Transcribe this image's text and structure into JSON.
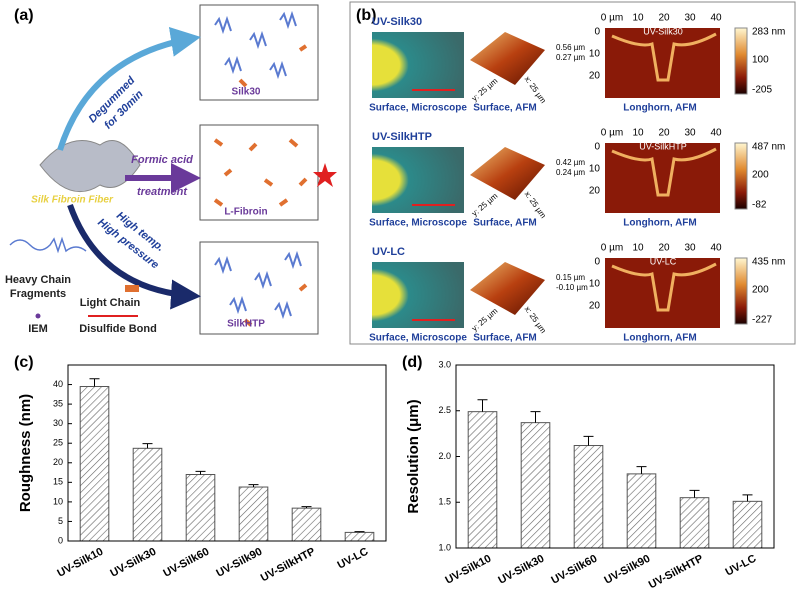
{
  "panel_a": {
    "label": "(a)",
    "fiber": "Silk Fibroin Fiber",
    "arrow_top": [
      "Degummed",
      "for 30min"
    ],
    "arrow_mid": [
      "Formic acid",
      "treatment"
    ],
    "arrow_bottom": [
      "High temp.",
      "High pressure"
    ],
    "box_labels": [
      "Silk30",
      "L-Fibroin",
      "SilkHTP"
    ],
    "legend": [
      "Heavy Chain",
      "Fragments",
      "Light Chain",
      "IEM",
      "Disulfide Bond"
    ]
  },
  "panel_b": {
    "label": "(b)",
    "captions": [
      "Surface, Microscope",
      "Surface, AFM",
      "Longhorn, AFM"
    ],
    "x_ticks": [
      "0 µm",
      "10",
      "20",
      "30",
      "40"
    ],
    "y_ticks": [
      "0",
      "10",
      "20"
    ],
    "afm_axes": [
      "y: 25 µm",
      "x: 25 µm"
    ],
    "rows": [
      {
        "name": "UV-Silk30",
        "afm_range": [
          "0.56 µm",
          "0.27 µm"
        ],
        "colorbar": [
          "283 nm",
          "100",
          "-205"
        ]
      },
      {
        "name": "UV-SilkHTP",
        "afm_range": [
          "0.42 µm",
          "0.24 µm"
        ],
        "colorbar": [
          "487 nm",
          "200",
          "-82"
        ]
      },
      {
        "name": "UV-LC",
        "afm_range": [
          "0.15 µm",
          "-0.10 µm"
        ],
        "colorbar": [
          "435 nm",
          "200",
          "-227"
        ]
      }
    ]
  },
  "chart_data": [
    {
      "type": "bar",
      "panel_label": "(c)",
      "ylabel": "Roughness (nm)",
      "categories": [
        "UV-Silk10",
        "UV-Silk30",
        "UV-Silk60",
        "UV-Silk90",
        "UV-SilkHTP",
        "UV-LC"
      ],
      "values": [
        39.5,
        23.7,
        17,
        13.8,
        8.4,
        2.2
      ],
      "errors": [
        2,
        1.2,
        0.8,
        0.6,
        0.4,
        0.2
      ],
      "color": "#555555",
      "ylim": [
        0,
        45
      ],
      "yticks": [
        0,
        5,
        10,
        15,
        20,
        25,
        30,
        35,
        40
      ]
    },
    {
      "type": "bar",
      "panel_label": "(d)",
      "ylabel": "Resolution (μm)",
      "categories": [
        "UV-Silk10",
        "UV-Silk30",
        "UV-Silk60",
        "UV-Silk90",
        "UV-SilkHTP",
        "UV-LC"
      ],
      "values": [
        2.49,
        2.37,
        2.12,
        1.81,
        1.55,
        1.51
      ],
      "errors": [
        0.13,
        0.12,
        0.1,
        0.08,
        0.08,
        0.07
      ],
      "color": "#555555",
      "ylim": [
        1.0,
        3.0
      ],
      "yticks": [
        {
          "value": 1.0,
          "label": "1.0"
        },
        {
          "value": 1.5,
          "label": "1.5"
        },
        {
          "value": 2.0,
          "label": "2.0"
        },
        {
          "value": 2.5,
          "label": "2.5"
        },
        {
          "value": 3.0,
          "label": "3.0"
        }
      ]
    }
  ]
}
